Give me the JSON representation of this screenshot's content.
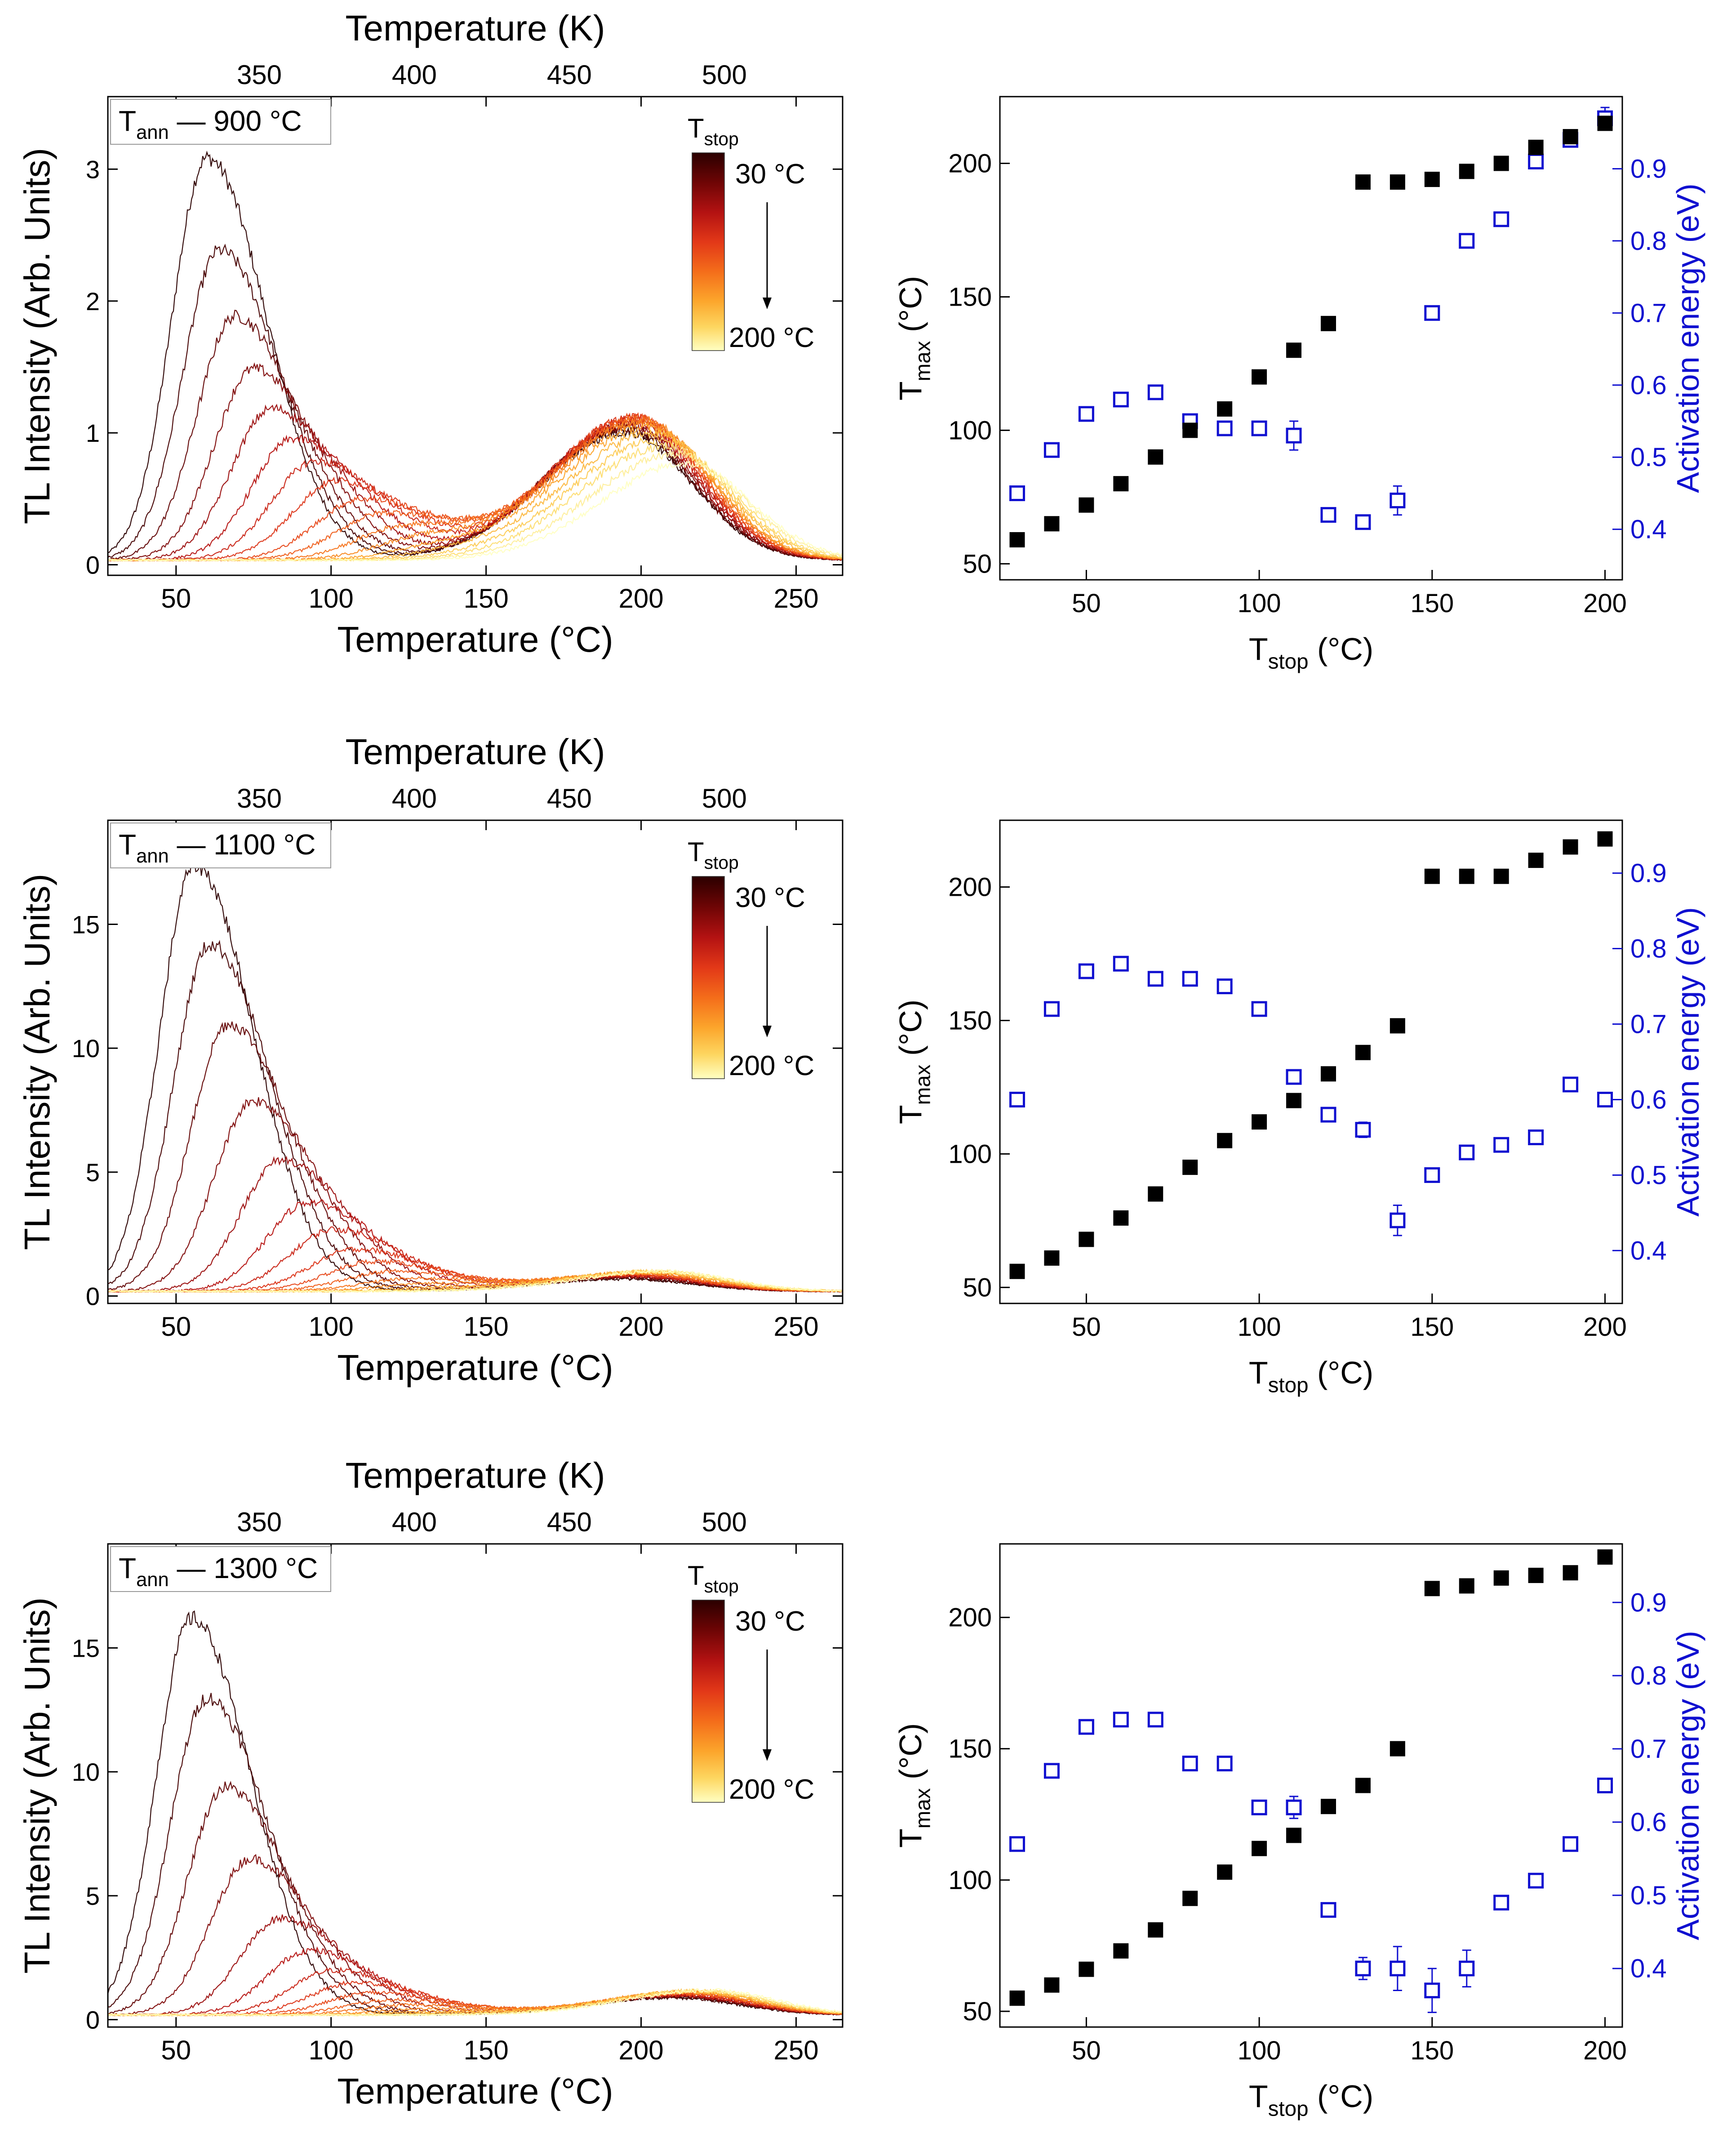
{
  "figure": {
    "description_free": true
  },
  "colors": {
    "tmax_marker": "#000000",
    "activation_marker": "#1010d0",
    "axis": "#000000",
    "colormap": [
      "#2a0000",
      "#6e0505",
      "#b31212",
      "#e23818",
      "#f46d1a",
      "#fca62c",
      "#fdd660",
      "#ffffc2"
    ]
  },
  "chart_data": [
    {
      "type": "line",
      "panel": "tl-glow-900",
      "legend_label": "T",
      "legend_sub": "ann",
      "legend_suffix": " — 900 °C",
      "xlabel": "Temperature (°C)",
      "x2label": "Temperature (K)",
      "ylabel": "TL Intensity (Arb. Units)",
      "xlim": [
        28,
        265
      ],
      "ylim": [
        -0.08,
        3.55
      ],
      "xticks": [
        50,
        100,
        150,
        200,
        250
      ],
      "yticks": [
        0,
        1,
        2,
        3
      ],
      "x2ticks": [
        350,
        400,
        450,
        500
      ],
      "colorbar": {
        "title": "T",
        "title_sub": "stop",
        "top_label": "30 °C",
        "bottom_label": "200 °C"
      },
      "series_stop_temps": [
        30,
        40,
        50,
        60,
        70,
        80,
        90,
        100,
        110,
        120,
        130,
        140,
        150,
        160,
        170,
        180,
        190,
        200
      ],
      "peak1_amp": [
        3.05,
        2.35,
        1.85,
        1.45,
        1.15,
        0.92,
        0.75,
        0.6,
        0.46,
        0.35,
        0.25,
        0.17,
        0.11,
        0.07,
        0.04,
        0.02,
        0.01,
        0.0
      ],
      "peak1_center": [
        60,
        64,
        69,
        75,
        81,
        88,
        95,
        102,
        110,
        117,
        124,
        131,
        138,
        145,
        152,
        158,
        164,
        170
      ],
      "peak2_amp": [
        0.97,
        0.99,
        1.0,
        1.02,
        1.03,
        1.05,
        1.07,
        1.08,
        1.08,
        1.07,
        1.06,
        1.04,
        1.0,
        0.96,
        0.91,
        0.86,
        0.8,
        0.73
      ],
      "peak2_center": [
        195,
        195,
        195,
        196,
        196,
        197,
        197,
        198,
        198,
        199,
        200,
        201,
        202,
        204,
        206,
        208,
        211,
        214
      ]
    },
    {
      "type": "scatter",
      "panel": "tmax-ea-900",
      "xlabel": "T",
      "xlabel_sub": "stop",
      "xlabel_suffix": " (°C)",
      "ylabel": "T",
      "ylabel_sub": "max",
      "ylabel_suffix": " (°C)",
      "y2label": "Activation energy (eV)",
      "xlim": [
        25,
        205
      ],
      "ylim": [
        44,
        225
      ],
      "y2lim": [
        0.33,
        1.0
      ],
      "xticks": [
        50,
        100,
        150,
        200
      ],
      "yticks": [
        50,
        100,
        150,
        200
      ],
      "y2ticks": [
        0.4,
        0.5,
        0.6,
        0.7,
        0.8,
        0.9
      ],
      "x": [
        30,
        40,
        50,
        60,
        70,
        80,
        90,
        100,
        110,
        120,
        130,
        140,
        150,
        160,
        170,
        180,
        190,
        200
      ],
      "tmax": [
        59,
        65,
        72,
        80,
        90,
        100,
        108,
        120,
        130,
        140,
        193,
        193,
        194,
        197,
        200,
        206,
        210,
        215
      ],
      "activation_energy": [
        0.45,
        0.51,
        0.56,
        0.58,
        0.59,
        0.55,
        0.54,
        0.54,
        0.53,
        0.42,
        0.41,
        0.44,
        0.7,
        0.8,
        0.83,
        0.91,
        0.94,
        0.97
      ],
      "activation_error": [
        0,
        0,
        0,
        0,
        0,
        0,
        0,
        0,
        0.02,
        0,
        0,
        0.02,
        0,
        0,
        0,
        0,
        0,
        0.015
      ]
    },
    {
      "type": "line",
      "panel": "tl-glow-1100",
      "legend_label": "T",
      "legend_sub": "ann",
      "legend_suffix": " — 1100 °C",
      "xlabel": "Temperature (°C)",
      "x2label": "Temperature (K)",
      "ylabel": "TL Intensity (Arb. Units)",
      "xlim": [
        28,
        265
      ],
      "ylim": [
        -0.3,
        19.2
      ],
      "xticks": [
        50,
        100,
        150,
        200,
        250
      ],
      "yticks": [
        0,
        5,
        10,
        15
      ],
      "x2ticks": [
        350,
        400,
        450,
        500
      ],
      "colorbar": {
        "title": "T",
        "title_sub": "stop",
        "top_label": "30 °C",
        "bottom_label": "200 °C"
      },
      "series_stop_temps": [
        30,
        40,
        50,
        60,
        70,
        80,
        90,
        100,
        110,
        120,
        130,
        140,
        150,
        160,
        170,
        180,
        190,
        200
      ],
      "peak1_amp": [
        17.2,
        14.0,
        10.8,
        7.7,
        5.3,
        3.6,
        2.5,
        1.7,
        1.2,
        0.8,
        0.5,
        0.3,
        0.15,
        0.08,
        0.04,
        0.02,
        0.01,
        0.0
      ],
      "peak1_center": [
        56,
        61,
        67,
        75,
        84,
        93,
        101,
        108,
        114,
        120,
        126,
        132,
        138,
        144,
        150,
        156,
        162,
        168
      ],
      "peak2_amp": [
        0.5,
        0.52,
        0.55,
        0.58,
        0.6,
        0.62,
        0.64,
        0.66,
        0.68,
        0.7,
        0.72,
        0.74,
        0.76,
        0.78,
        0.79,
        0.8,
        0.8,
        0.8
      ],
      "peak2_center": [
        195,
        195,
        196,
        196,
        197,
        197,
        198,
        198,
        199,
        199,
        200,
        201,
        202,
        203,
        204,
        205,
        206,
        207
      ]
    },
    {
      "type": "scatter",
      "panel": "tmax-ea-1100",
      "xlabel": "T",
      "xlabel_sub": "stop",
      "xlabel_suffix": " (°C)",
      "ylabel": "T",
      "ylabel_sub": "max",
      "ylabel_suffix": " (°C)",
      "y2label": "Activation energy (eV)",
      "xlim": [
        25,
        205
      ],
      "ylim": [
        44,
        225
      ],
      "y2lim": [
        0.33,
        0.97
      ],
      "xticks": [
        50,
        100,
        150,
        200
      ],
      "yticks": [
        50,
        100,
        150,
        200
      ],
      "y2ticks": [
        0.4,
        0.5,
        0.6,
        0.7,
        0.8,
        0.9
      ],
      "x": [
        30,
        40,
        50,
        60,
        70,
        80,
        90,
        100,
        110,
        120,
        130,
        140,
        150,
        160,
        170,
        180,
        190,
        200
      ],
      "tmax": [
        56,
        61,
        68,
        76,
        85,
        95,
        105,
        112,
        120,
        130,
        138,
        148,
        204,
        204,
        204,
        210,
        215,
        218
      ],
      "activation_energy": [
        0.6,
        0.72,
        0.77,
        0.78,
        0.76,
        0.76,
        0.75,
        0.72,
        0.63,
        0.58,
        0.56,
        0.44,
        0.5,
        0.53,
        0.54,
        0.55,
        0.62,
        0.6
      ],
      "activation_error": [
        0,
        0,
        0,
        0,
        0,
        0,
        0,
        0,
        0,
        0,
        0.01,
        0.02,
        0,
        0,
        0,
        0,
        0,
        0
      ]
    },
    {
      "type": "line",
      "panel": "tl-glow-1300",
      "legend_label": "T",
      "legend_sub": "ann",
      "legend_suffix": " — 1300 °C",
      "xlabel": "Temperature (°C)",
      "x2label": "Temperature (K)",
      "ylabel": "TL Intensity (Arb. Units)",
      "xlim": [
        28,
        265
      ],
      "ylim": [
        -0.3,
        19.2
      ],
      "xticks": [
        50,
        100,
        150,
        200,
        250
      ],
      "yticks": [
        0,
        5,
        10,
        15
      ],
      "x2ticks": [
        350,
        400,
        450,
        500
      ],
      "colorbar": {
        "title": "T",
        "title_sub": "stop",
        "top_label": "30 °C",
        "bottom_label": "200 °C"
      },
      "series_stop_temps": [
        30,
        40,
        50,
        60,
        70,
        80,
        90,
        100,
        110,
        120,
        130,
        140,
        150,
        160,
        170,
        180,
        190,
        200
      ],
      "peak1_amp": [
        16.0,
        12.8,
        9.2,
        6.3,
        3.9,
        2.6,
        1.8,
        1.3,
        0.9,
        0.6,
        0.4,
        0.25,
        0.14,
        0.08,
        0.04,
        0.02,
        0.01,
        0.0
      ],
      "peak1_center": [
        55,
        60,
        66,
        74,
        84,
        93,
        101,
        108,
        114,
        120,
        126,
        132,
        138,
        144,
        150,
        156,
        162,
        168
      ],
      "peak2_amp": [
        0.7,
        0.72,
        0.74,
        0.76,
        0.78,
        0.8,
        0.82,
        0.84,
        0.86,
        0.88,
        0.9,
        0.92,
        0.94,
        0.95,
        0.96,
        0.97,
        0.98,
        0.98
      ],
      "peak2_center": [
        210,
        210,
        211,
        211,
        212,
        212,
        213,
        213,
        214,
        214,
        215,
        215,
        216,
        217,
        218,
        219,
        220,
        222
      ]
    },
    {
      "type": "scatter",
      "panel": "tmax-ea-1300",
      "xlabel": "T",
      "xlabel_sub": "stop",
      "xlabel_suffix": " (°C)",
      "ylabel": "T",
      "ylabel_sub": "max",
      "ylabel_suffix": " (°C)",
      "y2label": "Activation energy (eV)",
      "xlim": [
        25,
        205
      ],
      "ylim": [
        44,
        228
      ],
      "y2lim": [
        0.32,
        0.98
      ],
      "xticks": [
        50,
        100,
        150,
        200
      ],
      "yticks": [
        50,
        100,
        150,
        200
      ],
      "y2ticks": [
        0.4,
        0.5,
        0.6,
        0.7,
        0.8,
        0.9
      ],
      "x": [
        30,
        40,
        50,
        60,
        70,
        80,
        90,
        100,
        110,
        120,
        130,
        140,
        150,
        160,
        170,
        180,
        190,
        200
      ],
      "tmax": [
        55,
        60,
        66,
        73,
        81,
        93,
        103,
        112,
        117,
        128,
        136,
        150,
        211,
        212,
        215,
        216,
        217,
        223
      ],
      "activation_energy": [
        0.57,
        0.67,
        0.73,
        0.74,
        0.74,
        0.68,
        0.68,
        0.62,
        0.62,
        0.48,
        0.4,
        0.4,
        0.37,
        0.4,
        0.49,
        0.52,
        0.57,
        0.65
      ],
      "activation_error": [
        0,
        0,
        0,
        0,
        0,
        0,
        0,
        0,
        0.015,
        0,
        0.015,
        0.03,
        0.03,
        0.025,
        0,
        0,
        0,
        0
      ]
    }
  ]
}
